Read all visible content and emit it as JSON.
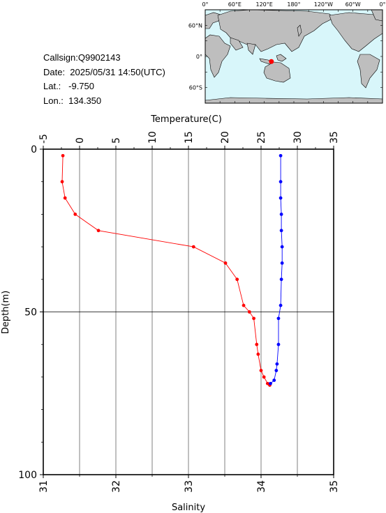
{
  "info": {
    "callsign": "Callsign:Q9902143",
    "date": "Date:  2025/05/31 14:50(UTC)",
    "lat": "Lat.:   -9.750",
    "lon": "Lon.:  134.350"
  },
  "map": {
    "lon_labels": [
      "0°",
      "60°E",
      "120°E",
      "180°",
      "120°W",
      "60°W",
      "0°"
    ],
    "lat_labels": [
      "60°N",
      "0°",
      "60°S"
    ],
    "ocean_color": "#d8f6fa",
    "land_color": "#bebebe",
    "marker_color": "#ff0000",
    "marker_lat": -9.75,
    "marker_lon": 134.35
  },
  "chart_data": {
    "type": "line",
    "ylabel": "Depth(m)",
    "y_ticks": [
      "0",
      "50",
      "100"
    ],
    "ylim": [
      0,
      100
    ],
    "y_inverted": true,
    "top_axis": {
      "label": "Temperature(C)",
      "ticks": [
        "-5",
        "0",
        "5",
        "10",
        "15",
        "20",
        "25",
        "30",
        "35"
      ],
      "range": [
        -5,
        35
      ]
    },
    "bottom_axis": {
      "label": "Salinity",
      "ticks": [
        "31",
        "32",
        "33",
        "34",
        "35"
      ],
      "range": [
        31,
        35
      ]
    },
    "grid": true,
    "series": [
      {
        "color": "#ff0000",
        "axis": "top",
        "points": [
          {
            "v": -2.3,
            "d": 2
          },
          {
            "v": -2.4,
            "d": 10
          },
          {
            "v": -2.0,
            "d": 15
          },
          {
            "v": -0.6,
            "d": 20
          },
          {
            "v": 2.6,
            "d": 25
          },
          {
            "v": 15.7,
            "d": 30
          },
          {
            "v": 20.1,
            "d": 35
          },
          {
            "v": 21.7,
            "d": 40
          },
          {
            "v": 22.6,
            "d": 48
          },
          {
            "v": 23.4,
            "d": 50
          },
          {
            "v": 24.0,
            "d": 52
          },
          {
            "v": 24.4,
            "d": 60
          },
          {
            "v": 24.6,
            "d": 63
          },
          {
            "v": 25.0,
            "d": 68
          },
          {
            "v": 25.4,
            "d": 70
          },
          {
            "v": 25.9,
            "d": 72
          },
          {
            "v": 26.2,
            "d": 72.5
          }
        ]
      },
      {
        "color": "#0000ff",
        "axis": "bottom",
        "points": [
          {
            "v": 34.27,
            "d": 2
          },
          {
            "v": 34.27,
            "d": 10
          },
          {
            "v": 34.27,
            "d": 15
          },
          {
            "v": 34.28,
            "d": 20
          },
          {
            "v": 34.28,
            "d": 25
          },
          {
            "v": 34.29,
            "d": 30
          },
          {
            "v": 34.29,
            "d": 35
          },
          {
            "v": 34.28,
            "d": 40
          },
          {
            "v": 34.27,
            "d": 48
          },
          {
            "v": 34.24,
            "d": 52
          },
          {
            "v": 34.24,
            "d": 60
          },
          {
            "v": 34.22,
            "d": 66
          },
          {
            "v": 34.21,
            "d": 68
          },
          {
            "v": 34.18,
            "d": 71
          },
          {
            "v": 34.13,
            "d": 72
          }
        ]
      }
    ]
  }
}
